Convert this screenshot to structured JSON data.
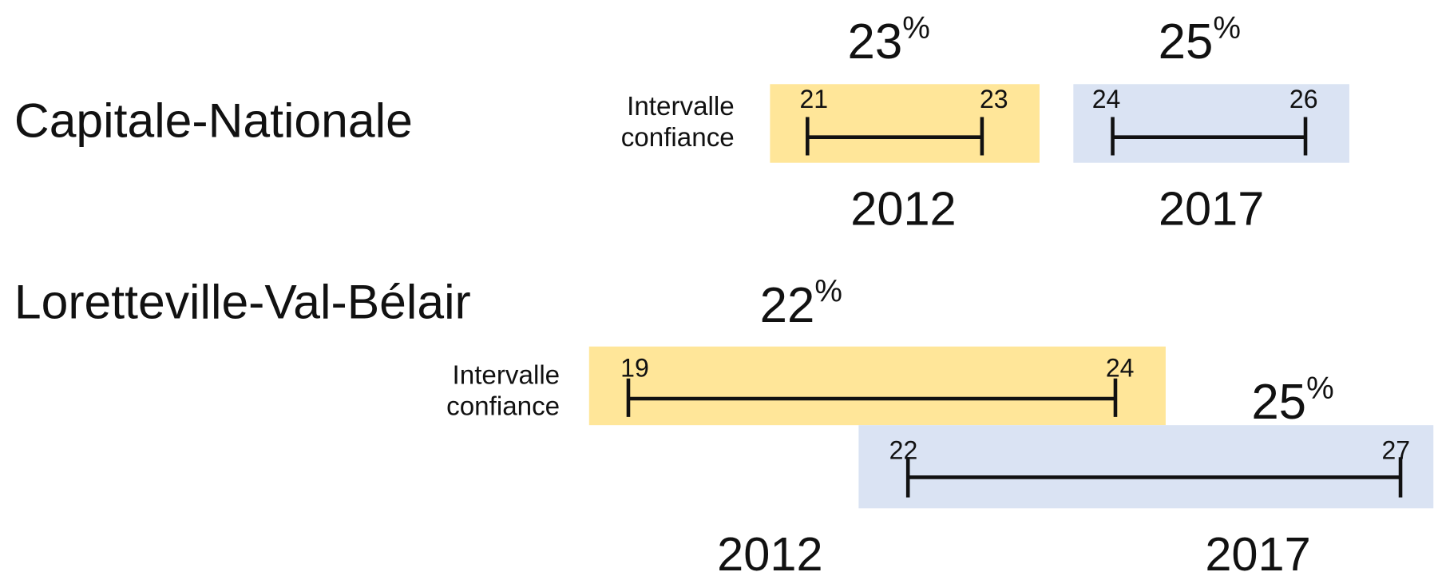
{
  "regions": [
    {
      "name": "Capitale-Nationale",
      "interval_label": [
        "Intervalle",
        "confiance"
      ],
      "years": [
        {
          "year": "2012",
          "estimate": 23,
          "unit": "%",
          "low": 21,
          "high": 23
        },
        {
          "year": "2017",
          "estimate": 25,
          "unit": "%",
          "low": 24,
          "high": 26
        }
      ]
    },
    {
      "name": "Loretteville-Val-Bélair",
      "interval_label": [
        "Intervalle",
        "confiance"
      ],
      "years": [
        {
          "year": "2012",
          "estimate": 22,
          "unit": "%",
          "low": 19,
          "high": 24
        },
        {
          "year": "2017",
          "estimate": 25,
          "unit": "%",
          "low": 22,
          "high": 27
        }
      ]
    }
  ]
}
